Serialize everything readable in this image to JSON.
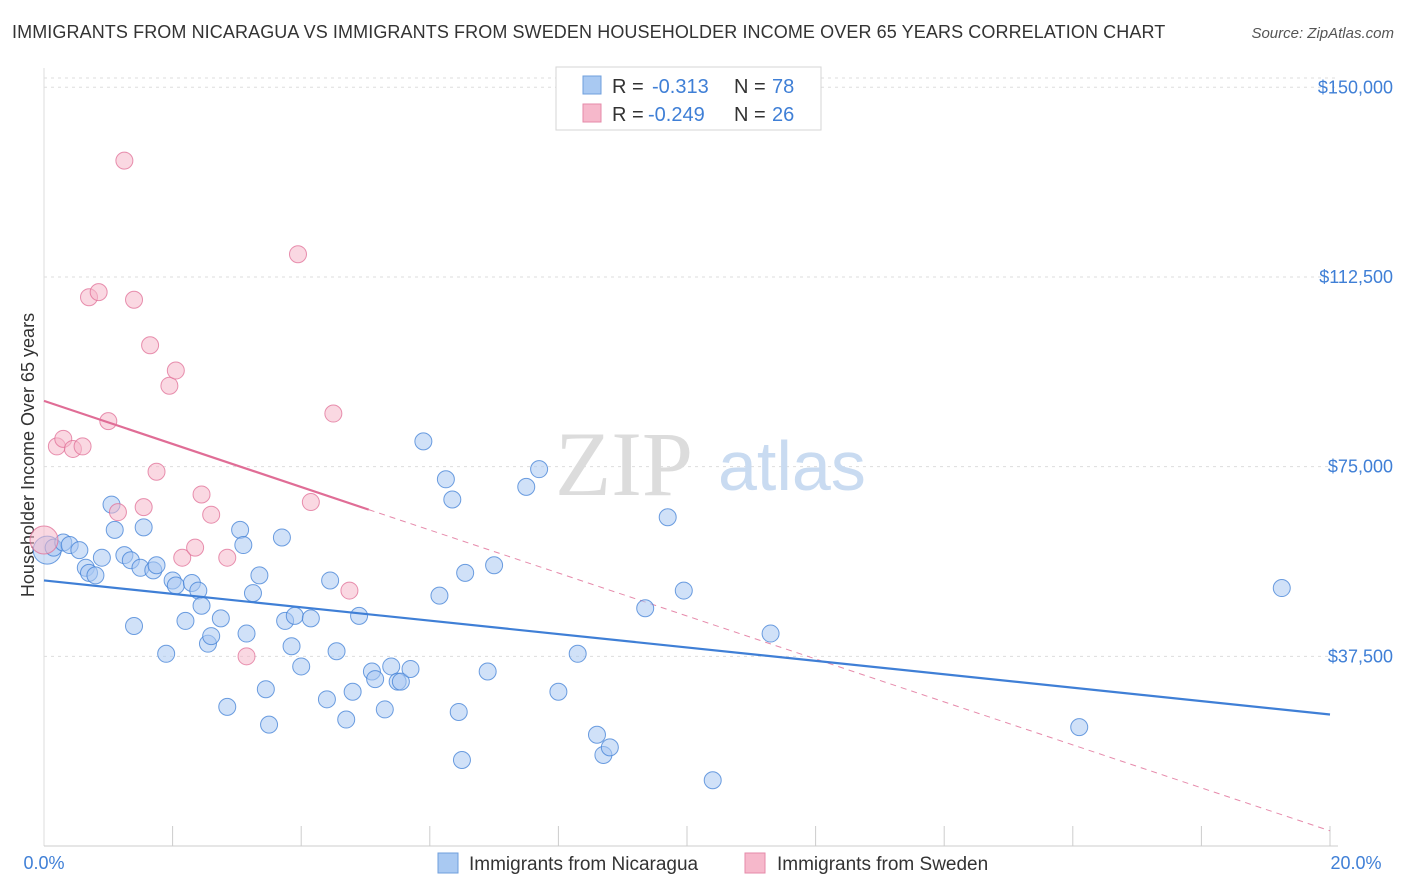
{
  "title": "IMMIGRANTS FROM NICARAGUA VS IMMIGRANTS FROM SWEDEN HOUSEHOLDER INCOME OVER 65 YEARS CORRELATION CHART",
  "source": "Source: ZipAtlas.com",
  "watermark": {
    "zip": "ZIP",
    "atlas": "atlas"
  },
  "legend": {
    "rows": [
      {
        "r_label": "R =",
        "r_value": "-0.313",
        "n_label": "N =",
        "n_value": "78",
        "color": "#a9c9f2"
      },
      {
        "r_label": "R =",
        "r_value": "-0.249",
        "n_label": "N =",
        "n_value": "26",
        "color": "#f6b8cb"
      }
    ]
  },
  "bottom_legend": {
    "items": [
      {
        "label": "Immigrants from Nicaragua",
        "color": "#a9c9f2"
      },
      {
        "label": "Immigrants from Sweden",
        "color": "#f6b8cb"
      }
    ]
  },
  "chart_data": {
    "type": "scatter",
    "title": "IMMIGRANTS FROM NICARAGUA VS IMMIGRANTS FROM SWEDEN HOUSEHOLDER INCOME OVER 65 YEARS CORRELATION CHART",
    "xlabel": "",
    "ylabel": "Householder Income Over 65 years",
    "xlim": [
      0,
      20
    ],
    "ylim": [
      0,
      155000
    ],
    "x_tick_labels": [
      "0.0%",
      "20.0%"
    ],
    "y_ticks": [
      37500,
      75000,
      112500,
      150000
    ],
    "y_tick_labels": [
      "$37,500",
      "$75,000",
      "$112,500",
      "$150,000"
    ],
    "grid": true,
    "legend_position": "top-center",
    "series": [
      {
        "name": "Immigrants from Nicaragua",
        "color": "#3f7fd6",
        "fill": "#a9c9f2",
        "trend": {
          "x": [
            0,
            20
          ],
          "y": [
            52500,
            26000
          ]
        },
        "points": [
          [
            0.05,
            58500
          ],
          [
            0.15,
            59000
          ],
          [
            0.3,
            60000
          ],
          [
            0.4,
            59500
          ],
          [
            0.55,
            58500
          ],
          [
            0.65,
            55000
          ],
          [
            0.7,
            54000
          ],
          [
            0.8,
            53500
          ],
          [
            0.9,
            57000
          ],
          [
            1.05,
            67500
          ],
          [
            1.1,
            62500
          ],
          [
            1.25,
            57500
          ],
          [
            1.35,
            56500
          ],
          [
            1.4,
            43500
          ],
          [
            1.5,
            55000
          ],
          [
            1.55,
            63000
          ],
          [
            1.7,
            54500
          ],
          [
            1.75,
            55500
          ],
          [
            1.9,
            38000
          ],
          [
            2.0,
            52500
          ],
          [
            2.05,
            51500
          ],
          [
            2.2,
            44500
          ],
          [
            2.3,
            52000
          ],
          [
            2.4,
            50500
          ],
          [
            2.45,
            47500
          ],
          [
            2.55,
            40000
          ],
          [
            2.6,
            41500
          ],
          [
            2.75,
            45000
          ],
          [
            2.85,
            27500
          ],
          [
            3.05,
            62500
          ],
          [
            3.1,
            59500
          ],
          [
            3.15,
            42000
          ],
          [
            3.25,
            50000
          ],
          [
            3.35,
            53500
          ],
          [
            3.45,
            31000
          ],
          [
            3.5,
            24000
          ],
          [
            3.7,
            61000
          ],
          [
            3.75,
            44500
          ],
          [
            3.85,
            39500
          ],
          [
            3.9,
            45500
          ],
          [
            4.0,
            35500
          ],
          [
            4.15,
            45000
          ],
          [
            4.4,
            29000
          ],
          [
            4.45,
            52500
          ],
          [
            4.55,
            38500
          ],
          [
            4.7,
            25000
          ],
          [
            4.8,
            30500
          ],
          [
            4.9,
            45500
          ],
          [
            5.1,
            34500
          ],
          [
            5.15,
            33000
          ],
          [
            5.3,
            27000
          ],
          [
            5.4,
            35500
          ],
          [
            5.5,
            32500
          ],
          [
            5.55,
            32500
          ],
          [
            5.7,
            35000
          ],
          [
            5.9,
            80000
          ],
          [
            6.15,
            49500
          ],
          [
            6.25,
            72500
          ],
          [
            6.35,
            68500
          ],
          [
            6.45,
            26500
          ],
          [
            6.5,
            17000
          ],
          [
            6.55,
            54000
          ],
          [
            6.9,
            34500
          ],
          [
            7.0,
            55500
          ],
          [
            7.5,
            71000
          ],
          [
            7.7,
            74500
          ],
          [
            8.0,
            30500
          ],
          [
            8.3,
            38000
          ],
          [
            8.6,
            22000
          ],
          [
            8.7,
            18000
          ],
          [
            8.8,
            19500
          ],
          [
            9.35,
            47000
          ],
          [
            9.7,
            65000
          ],
          [
            9.95,
            50500
          ],
          [
            10.4,
            13000
          ],
          [
            11.3,
            42000
          ],
          [
            16.1,
            23500
          ],
          [
            19.25,
            51000
          ]
        ]
      },
      {
        "name": "Immigrants from Sweden",
        "color": "#e06d96",
        "fill": "#f6b8cb",
        "trend": {
          "x": [
            0,
            5.05
          ],
          "y": [
            88000,
            66500
          ]
        },
        "trend_extension": {
          "x": [
            5.05,
            20
          ],
          "y": [
            66500,
            3000
          ]
        },
        "points": [
          [
            0.0,
            60500
          ],
          [
            0.2,
            79000
          ],
          [
            0.3,
            80500
          ],
          [
            0.45,
            78500
          ],
          [
            0.6,
            79000
          ],
          [
            0.7,
            108500
          ],
          [
            0.85,
            109500
          ],
          [
            1.0,
            84000
          ],
          [
            1.15,
            66000
          ],
          [
            1.25,
            135500
          ],
          [
            1.4,
            108000
          ],
          [
            1.55,
            67000
          ],
          [
            1.65,
            99000
          ],
          [
            1.75,
            74000
          ],
          [
            1.95,
            91000
          ],
          [
            2.05,
            94000
          ],
          [
            2.15,
            57000
          ],
          [
            2.35,
            59000
          ],
          [
            2.45,
            69500
          ],
          [
            2.6,
            65500
          ],
          [
            2.85,
            57000
          ],
          [
            3.15,
            37500
          ],
          [
            3.95,
            117000
          ],
          [
            4.15,
            68000
          ],
          [
            4.5,
            85500
          ],
          [
            4.75,
            50500
          ]
        ]
      }
    ]
  }
}
